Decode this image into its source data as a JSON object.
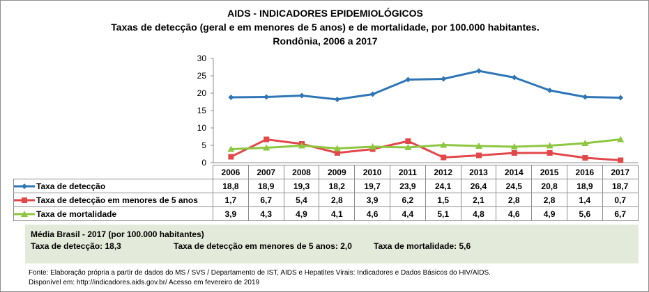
{
  "chart_data": {
    "type": "line",
    "title": "AIDS - INDICADORES EPIDEMIOLÓGICOS",
    "subtitle": "Taxas de detecção (geral e em menores de 5 anos) e de mortalidade, por 100.000 habitantes.",
    "subtitle2": "Rondônia, 2006 a 2017",
    "categories": [
      "2006",
      "2007",
      "2008",
      "2009",
      "2010",
      "2011",
      "2012",
      "2013",
      "2014",
      "2015",
      "2016",
      "2017"
    ],
    "ylim": [
      0,
      30
    ],
    "yticks": [
      "0",
      "5",
      "10",
      "15",
      "20",
      "25",
      "30"
    ],
    "grid": false,
    "legend": "table-below",
    "series": [
      {
        "name": "Taxa de detecção",
        "color": "#2e75b6",
        "marker": "diamond",
        "values": [
          18.8,
          18.9,
          19.3,
          18.2,
          19.7,
          23.9,
          24.1,
          26.4,
          24.5,
          20.8,
          18.9,
          18.7
        ],
        "labels": [
          "18,8",
          "18,9",
          "19,3",
          "18,2",
          "19,7",
          "23,9",
          "24,1",
          "26,4",
          "24,5",
          "20,8",
          "18,9",
          "18,7"
        ]
      },
      {
        "name": "Taxa de detecção em menores de 5 anos",
        "color": "#e2474a",
        "marker": "square",
        "values": [
          1.7,
          6.7,
          5.4,
          2.8,
          3.9,
          6.2,
          1.5,
          2.1,
          2.8,
          2.8,
          1.4,
          0.7
        ],
        "labels": [
          "1,7",
          "6,7",
          "5,4",
          "2,8",
          "3,9",
          "6,2",
          "1,5",
          "2,1",
          "2,8",
          "2,8",
          "1,4",
          "0,7"
        ]
      },
      {
        "name": "Taxa de mortalidade",
        "color": "#8dc63f",
        "marker": "triangle",
        "values": [
          3.9,
          4.3,
          4.9,
          4.1,
          4.6,
          4.4,
          5.1,
          4.8,
          4.6,
          4.9,
          5.6,
          6.7
        ],
        "labels": [
          "3,9",
          "4,3",
          "4,9",
          "4,1",
          "4,6",
          "4,4",
          "5,1",
          "4,8",
          "4,6",
          "4,9",
          "5,6",
          "6,7"
        ]
      }
    ]
  },
  "average": {
    "heading": "Média Brasil - 2017  (por 100.000 habitantes)",
    "detection": "Taxa de detecção: 18,3",
    "under5": "Taxa de detecção em menores de 5 anos: 2,0",
    "mortality": "Taxa de mortalidade: 5,6"
  },
  "footer": {
    "source": "Fonte: Elaboração própria a partir de dados do MS / SVS / Departamento de IST, AIDS e Hepatites Virais: Indicadores e Dados Básicos do HIV/AIDS.",
    "available": "Disponível em: http://indicadores.aids.gov.br/    Acesso em fevereiro de 2019"
  }
}
